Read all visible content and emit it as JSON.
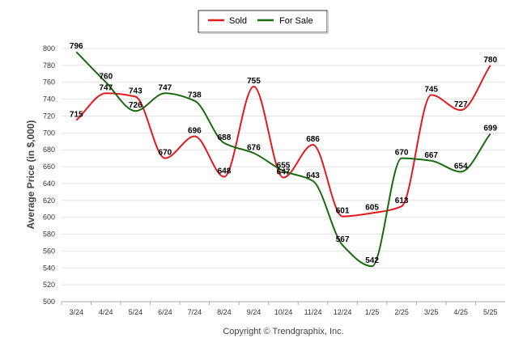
{
  "footer": "Copyright © Trendgraphix, Inc.",
  "chart_data": {
    "type": "line",
    "title": "",
    "xlabel": "",
    "ylabel": "Average Price (in $,000)",
    "categories": [
      "3/24",
      "4/24",
      "5/24",
      "6/24",
      "7/24",
      "8/24",
      "9/24",
      "10/24",
      "11/24",
      "12/24",
      "1/25",
      "2/25",
      "3/25",
      "4/25",
      "5/25"
    ],
    "ylim": [
      500,
      800
    ],
    "yticks": [
      "500",
      "520",
      "540",
      "560",
      "580",
      "600",
      "620",
      "640",
      "660",
      "680",
      "700",
      "720",
      "740",
      "760",
      "780",
      "800"
    ],
    "grid": true,
    "legend_position": "top-center",
    "series": [
      {
        "name": "Sold",
        "color": "#e31a1c",
        "values": [
          715,
          747,
          743,
          670,
          696,
          648,
          755,
          647,
          686,
          601,
          605,
          613,
          745,
          727,
          780
        ],
        "labels": [
          "715",
          "747",
          "743",
          "670",
          "696",
          "648",
          "755",
          "647",
          "686",
          "601",
          "605",
          "613",
          "745",
          "727",
          "780"
        ]
      },
      {
        "name": "For Sale",
        "color": "#1a6b0f",
        "values": [
          796,
          760,
          726,
          747,
          738,
          688,
          676,
          655,
          643,
          567,
          542,
          670,
          667,
          654,
          699
        ],
        "labels": [
          "796",
          "760",
          "726",
          "747",
          "738",
          "688",
          "676",
          "655",
          "643",
          "567",
          "542",
          "670",
          "667",
          "654",
          "699"
        ]
      }
    ]
  }
}
